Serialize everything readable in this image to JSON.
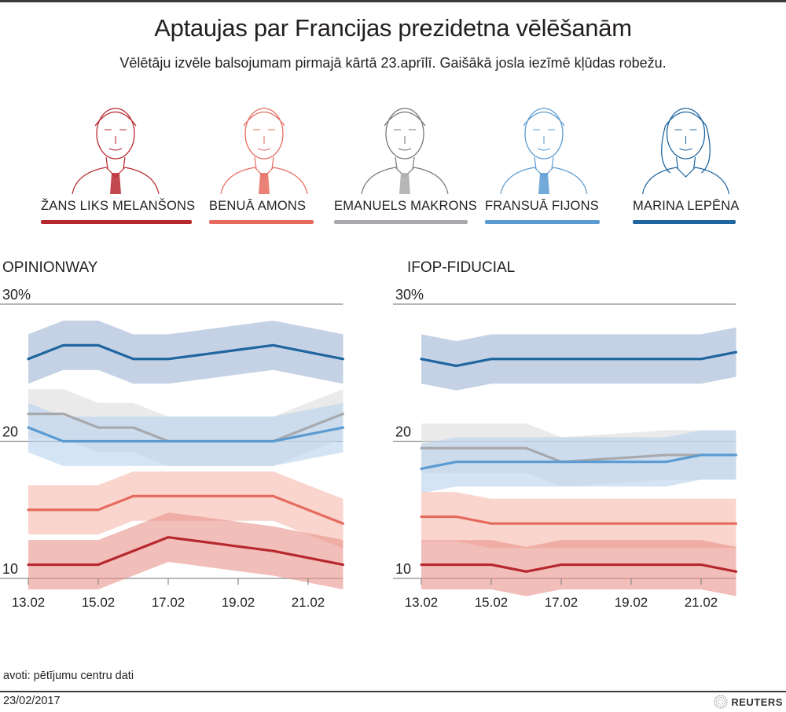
{
  "header": {
    "title": "Aptaujas par Francijas prezidetna vēlēšanām",
    "subtitle": "Vēlētāju izvēle balsojumam pirmajā kārtā 23.aprīlī. Gaišākā josla iezīmē kļūdas robežu."
  },
  "candidates": [
    {
      "name": "ŽANS LIKS MELANŠONS",
      "color": "#b7282e",
      "band": "#e8938a",
      "icon": "portrait-melenchon-icon"
    },
    {
      "name": "BENUĀ AMONS",
      "color": "#e66b5f",
      "band": "#f6b9ae",
      "icon": "portrait-hamon-icon"
    },
    {
      "name": "EMANUELS MAKRONS",
      "color": "#a8a9ad",
      "band": "#dcdcdc",
      "icon": "portrait-macron-icon"
    },
    {
      "name": "FRANSUĀ FIJONS",
      "color": "#5b9bd2",
      "band": "#b7d2ec",
      "icon": "portrait-fillon-icon"
    },
    {
      "name": "MARINA LEPĒNA",
      "color": "#1f659f",
      "band": "#9fb4d3",
      "icon": "portrait-lepen-icon"
    }
  ],
  "chart_data": [
    {
      "type": "line",
      "title": "OPINIONWAY",
      "x": [
        "13.02",
        "14.02",
        "15.02",
        "16.02",
        "17.02",
        "18.02",
        "19.02",
        "20.02",
        "21.02",
        "22.02"
      ],
      "xtick_labels": [
        "13.02",
        "15.02",
        "17.02",
        "19.02",
        "21.02"
      ],
      "ytick_labels": [
        "10",
        "20",
        "30%"
      ],
      "yticks": [
        10,
        20,
        30
      ],
      "ylim": [
        10,
        30
      ],
      "margin_of_error": 1.8,
      "series": [
        {
          "name": "MARINA LEPĒNA",
          "values": [
            26,
            27,
            27,
            26,
            26,
            26.33,
            26.67,
            27,
            26.5,
            26
          ]
        },
        {
          "name": "EMANUELS MAKRONS",
          "values": [
            22,
            22,
            21,
            21,
            20,
            20,
            20,
            20,
            21,
            22
          ]
        },
        {
          "name": "FRANSUĀ FIJONS",
          "values": [
            21,
            20,
            20,
            20,
            20,
            20,
            20,
            20,
            20.5,
            21
          ]
        },
        {
          "name": "BENUĀ AMONS",
          "values": [
            15,
            15,
            15,
            16,
            16,
            16,
            16,
            16,
            15,
            14
          ]
        },
        {
          "name": "ŽANS LIKS MELANŠONS",
          "values": [
            11,
            11,
            11,
            12,
            13,
            12.67,
            12.33,
            12,
            11.5,
            11
          ]
        }
      ]
    },
    {
      "type": "line",
      "title": "IFOP-FIDUCIAL",
      "x": [
        "13.02",
        "14.02",
        "15.02",
        "16.02",
        "17.02",
        "18.02",
        "19.02",
        "20.02",
        "21.02",
        "22.02"
      ],
      "xtick_labels": [
        "13.02",
        "15.02",
        "17.02",
        "19.02",
        "21.02"
      ],
      "ytick_labels": [
        "10",
        "20",
        "30%"
      ],
      "yticks": [
        10,
        20,
        30
      ],
      "ylim": [
        10,
        30
      ],
      "margin_of_error": 1.8,
      "series": [
        {
          "name": "MARINA LEPĒNA",
          "values": [
            26,
            25.5,
            26,
            26,
            26,
            26,
            26,
            26,
            26,
            26.5
          ]
        },
        {
          "name": "EMANUELS MAKRONS",
          "values": [
            19.5,
            19.5,
            19.5,
            19.5,
            18.5,
            18.67,
            18.83,
            19,
            19,
            19
          ]
        },
        {
          "name": "FRANSUĀ FIJONS",
          "values": [
            18,
            18.5,
            18.5,
            18.5,
            18.5,
            18.5,
            18.5,
            18.5,
            19,
            19
          ]
        },
        {
          "name": "BENUĀ AMONS",
          "values": [
            14.5,
            14.5,
            14,
            14,
            14,
            14,
            14,
            14,
            14,
            14
          ]
        },
        {
          "name": "ŽANS LIKS MELANŠONS",
          "values": [
            11,
            11,
            11,
            10.5,
            11,
            11,
            11,
            11,
            11,
            10.5
          ]
        }
      ]
    }
  ],
  "footer": {
    "source": "avoti: pētījumu centru dati",
    "date": "23/02/2017",
    "brand": "REUTERS"
  }
}
